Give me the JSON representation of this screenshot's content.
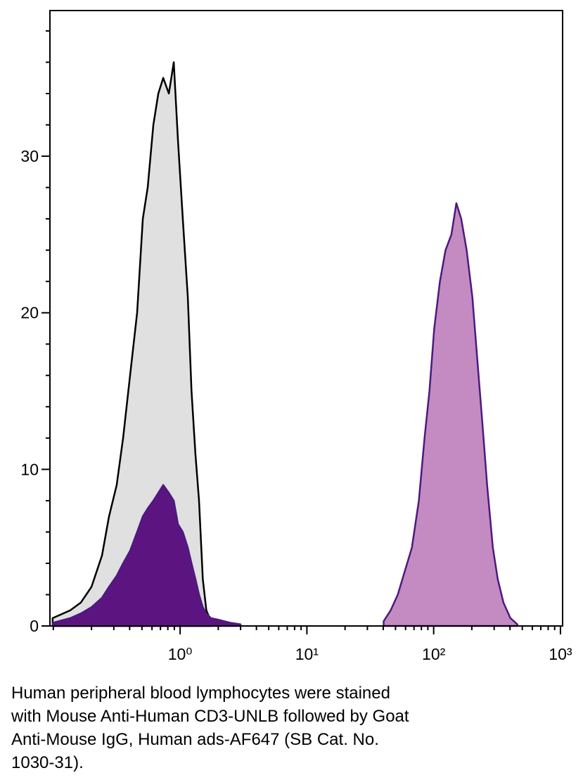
{
  "chart_data": {
    "type": "area",
    "xscale": "log",
    "xlim": [
      0.094,
      1040
    ],
    "ylim": [
      0,
      39.3
    ],
    "xticks": [
      {
        "value": 1,
        "label": "10⁰"
      },
      {
        "value": 10,
        "label": "10¹"
      },
      {
        "value": 100,
        "label": "10²"
      },
      {
        "value": 1000,
        "label": "10³"
      }
    ],
    "x_minor_ticks": [
      0.1,
      0.2,
      0.3,
      0.4,
      0.5,
      0.6,
      0.7,
      0.8,
      0.9,
      2,
      3,
      4,
      5,
      6,
      7,
      8,
      9,
      20,
      30,
      40,
      50,
      60,
      70,
      80,
      90,
      200,
      300,
      400,
      500,
      600,
      700,
      800,
      900
    ],
    "yticks": [
      0,
      10,
      20,
      30
    ],
    "y_minor_ticks": [
      2,
      4,
      6,
      8,
      12,
      14,
      16,
      18,
      22,
      24,
      26,
      28,
      32,
      34,
      36,
      38
    ],
    "series": [
      {
        "color": "#e0e0e0",
        "line_color": "#000000",
        "x": [
          0.0987,
          0.136,
          0.165,
          0.2,
          0.242,
          0.275,
          0.316,
          0.355,
          0.403,
          0.458,
          0.508,
          0.555,
          0.615,
          0.673,
          0.736,
          0.815,
          0.891,
          0.962,
          1.05,
          1.15,
          1.23,
          1.32,
          1.41,
          1.51,
          1.61,
          1.75
        ],
        "values": [
          0.5,
          1,
          1.5,
          2.5,
          4.5,
          7,
          9,
          12,
          16,
          20,
          26,
          28,
          32,
          34,
          35,
          34,
          36,
          31,
          26,
          21,
          15,
          11,
          8,
          3,
          1,
          0.3
        ]
      },
      {
        "color": "#5c1580",
        "line_color": "#4b1a7f",
        "x": [
          0.0987,
          0.136,
          0.165,
          0.2,
          0.242,
          0.275,
          0.316,
          0.355,
          0.403,
          0.458,
          0.508,
          0.555,
          0.615,
          0.673,
          0.736,
          0.815,
          0.891,
          0.962,
          1.05,
          1.15,
          1.23,
          1.32,
          1.41,
          1.51,
          1.61,
          1.75,
          2,
          2.5,
          3
        ],
        "values": [
          0.2,
          0.5,
          0.8,
          1.2,
          1.8,
          2.5,
          3.2,
          4,
          4.8,
          6,
          7,
          7.5,
          8,
          8.5,
          9,
          8.5,
          8,
          6.5,
          6,
          5,
          4,
          3,
          2,
          1.2,
          0.8,
          0.5,
          0.4,
          0.2,
          0.1
        ]
      },
      {
        "color": "#c38bc2",
        "line_color": "#4b1a7f",
        "x": [
          40.3,
          45.8,
          52.1,
          59.2,
          67.3,
          76.4,
          84.7,
          92.6,
          101,
          112,
          124,
          138,
          151,
          165,
          182,
          202,
          221,
          242,
          264,
          293,
          320,
          355,
          403,
          458
        ],
        "values": [
          0.3,
          1,
          2,
          3.5,
          5,
          8,
          12,
          15,
          19,
          22,
          24,
          25,
          27,
          26,
          24,
          21,
          17,
          13,
          9,
          5,
          3,
          1.5,
          0.5,
          0.1
        ]
      }
    ],
    "caption": [
      "Human peripheral blood lymphocytes were stained",
      "with Mouse Anti-Human CD3-UNLB followed by Goat",
      "Anti-Mouse IgG, Human ads-AF647 (SB Cat. No.",
      "1030-31)."
    ]
  }
}
